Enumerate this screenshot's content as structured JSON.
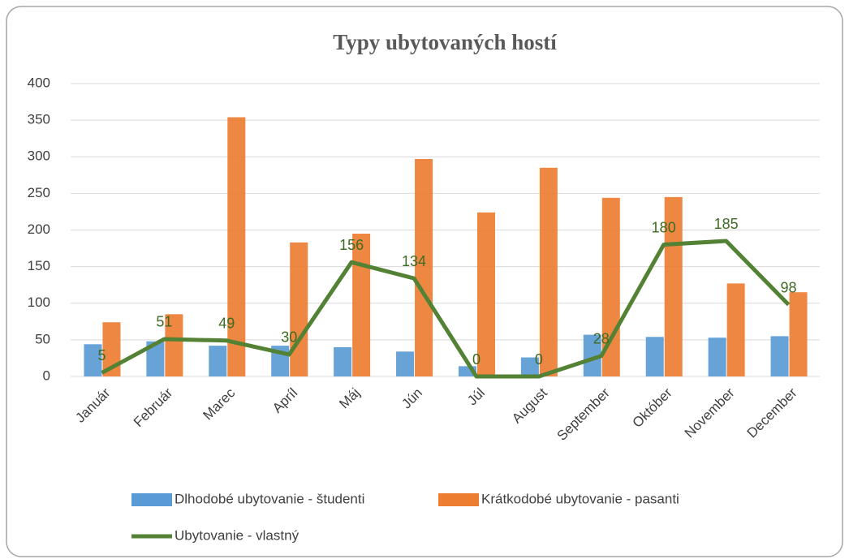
{
  "chart_data": {
    "type": "bar",
    "title": "Typy ubytovaných hostí",
    "categories": [
      "Január",
      "Február",
      "Marec",
      "Apríl",
      "Máj",
      "Jún",
      "Júl",
      "August",
      "September",
      "Október",
      "November",
      "December"
    ],
    "series": [
      {
        "name": "Dlhodobé ubytovanie - študenti",
        "type": "bar",
        "color": "#5b9bd5",
        "values": [
          44,
          48,
          42,
          42,
          40,
          34,
          14,
          26,
          57,
          54,
          53,
          55
        ]
      },
      {
        "name": "Krátkodobé ubytovanie - pasanti",
        "type": "bar",
        "color": "#ed7d31",
        "values": [
          74,
          85,
          354,
          183,
          195,
          297,
          224,
          285,
          244,
          245,
          127,
          115
        ]
      },
      {
        "name": "Ubytovanie - vlastný",
        "type": "line",
        "color": "#548235",
        "data_labels": true,
        "values": [
          5,
          51,
          49,
          30,
          156,
          134,
          0,
          0,
          28,
          180,
          185,
          98
        ]
      }
    ],
    "ylim": [
      0,
      400
    ],
    "yticks": [
      0,
      50,
      100,
      150,
      200,
      250,
      300,
      350,
      400
    ],
    "grid": true,
    "legend": "bottom"
  }
}
